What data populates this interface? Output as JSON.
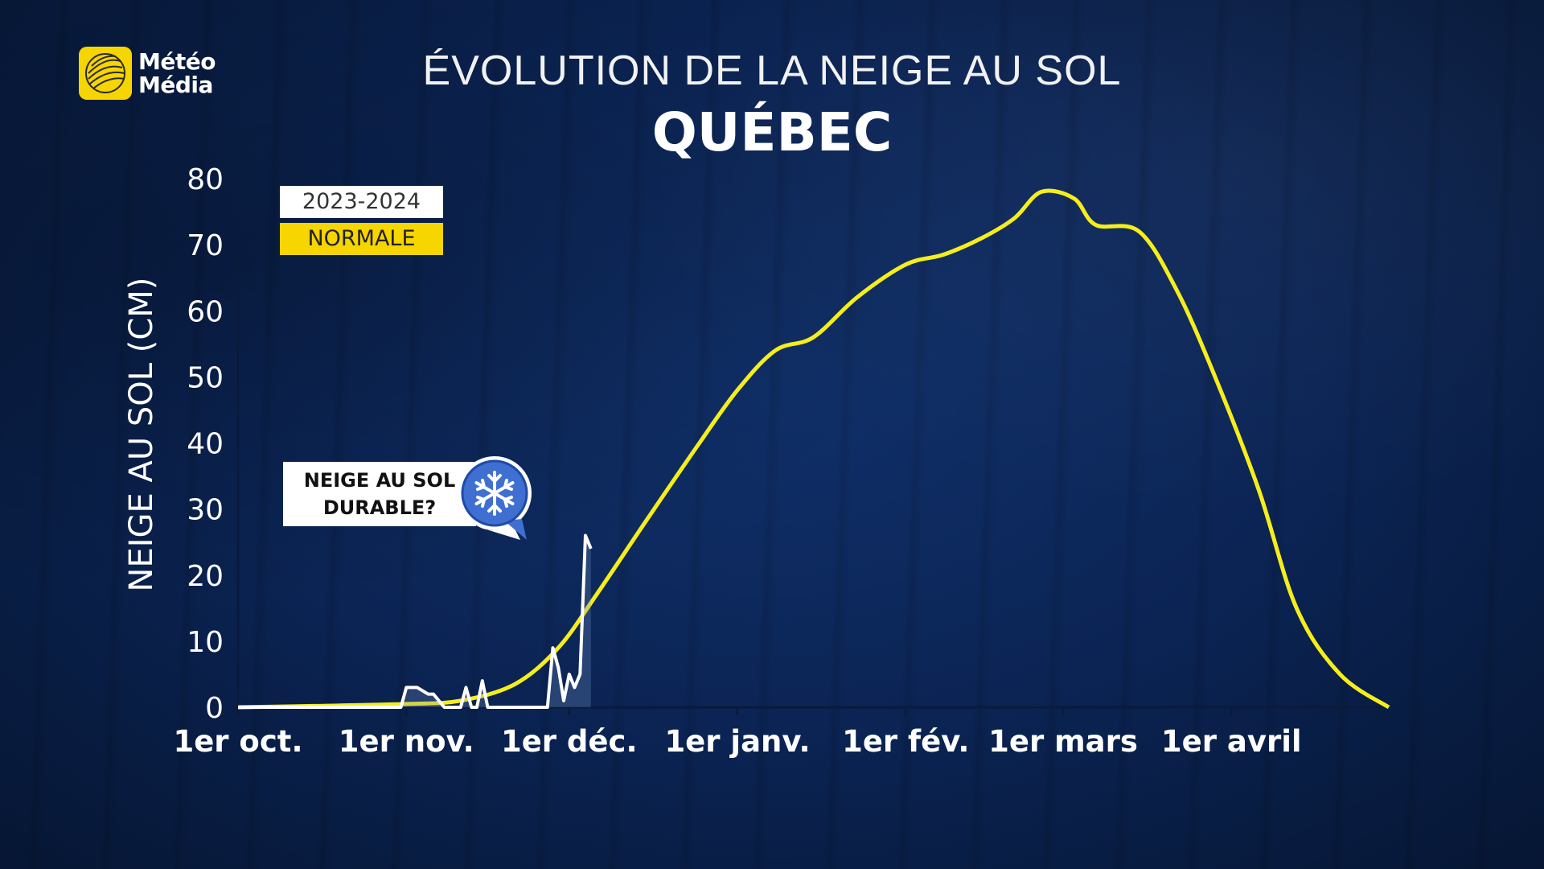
{
  "brand": {
    "line1": "Météo",
    "line2": "Média"
  },
  "header": {
    "title": "ÉVOLUTION DE LA NEIGE AU SOL",
    "subtitle": "QUÉBEC"
  },
  "legend": {
    "current": "2023-2024",
    "normal": "NORMALE"
  },
  "callout": {
    "line1": "NEIGE AU SOL",
    "line2": "DURABLE?",
    "icon": "snowflake-icon"
  },
  "colors": {
    "current": "#ffffff",
    "normal": "#f6ee1c",
    "background": "#0b2454",
    "accent": "#f6d500"
  },
  "chart_data": {
    "type": "line",
    "title": "ÉVOLUTION DE LA NEIGE AU SOL",
    "subtitle": "QUÉBEC",
    "ylabel": "NEIGE AU SOL (CM)",
    "xlabel": "",
    "ylim": [
      0,
      80
    ],
    "yticks": [
      "0",
      "10",
      "20",
      "30",
      "40",
      "50",
      "60",
      "70",
      "80"
    ],
    "xlim": [
      "2023-10-01",
      "2024-04-30"
    ],
    "xticks": [
      {
        "label": "1er oct.",
        "date": "2023-10-01"
      },
      {
        "label": "1er nov.",
        "date": "2023-11-01"
      },
      {
        "label": "1er déc.",
        "date": "2023-12-01"
      },
      {
        "label": "1er janv.",
        "date": "2024-01-01"
      },
      {
        "label": "1er fév.",
        "date": "2024-02-01"
      },
      {
        "label": "1er mars",
        "date": "2024-03-01"
      },
      {
        "label": "1er avril",
        "date": "2024-04-01"
      }
    ],
    "legend_position": "top-left",
    "grid": false,
    "series": [
      {
        "name": "NORMALE",
        "x": [
          "2023-10-01",
          "2023-10-15",
          "2023-11-01",
          "2023-11-11",
          "2023-11-21",
          "2023-11-29",
          "2023-12-06",
          "2023-12-15",
          "2023-12-25",
          "2024-01-01",
          "2024-01-08",
          "2024-01-15",
          "2024-01-23",
          "2024-02-01",
          "2024-02-08",
          "2024-02-15",
          "2024-02-21",
          "2024-02-26",
          "2024-03-03",
          "2024-03-07",
          "2024-03-15",
          "2024-03-22",
          "2024-03-29",
          "2024-04-06",
          "2024-04-13",
          "2024-04-21",
          "2024-04-30"
        ],
        "y": [
          0,
          0.2,
          0.5,
          1,
          3.5,
          9,
          17,
          28,
          40,
          48,
          54,
          56,
          62,
          67,
          68.5,
          71,
          74,
          78,
          77,
          73,
          72,
          63,
          50,
          33,
          15,
          5,
          0
        ]
      },
      {
        "name": "2023-2024",
        "x": [
          "2023-10-01",
          "2023-10-31",
          "2023-11-01",
          "2023-11-03",
          "2023-11-05",
          "2023-11-06",
          "2023-11-08",
          "2023-11-11",
          "2023-11-12",
          "2023-11-13",
          "2023-11-14",
          "2023-11-15",
          "2023-11-16",
          "2023-11-17",
          "2023-11-18",
          "2023-11-27",
          "2023-11-28",
          "2023-11-29",
          "2023-11-30",
          "2023-12-01",
          "2023-12-02",
          "2023-12-03",
          "2023-12-04",
          "2023-12-05"
        ],
        "y": [
          0,
          0,
          3,
          3,
          2,
          2,
          0,
          0,
          3,
          0,
          0,
          4,
          0,
          0,
          0,
          0,
          9,
          6,
          1,
          5,
          3,
          5,
          26,
          24
        ]
      }
    ]
  }
}
